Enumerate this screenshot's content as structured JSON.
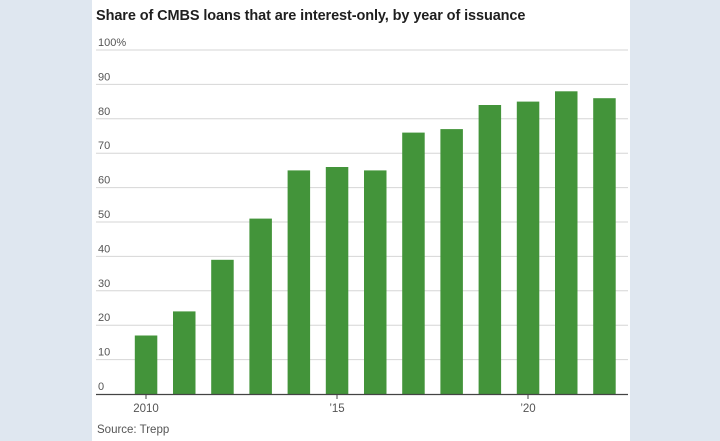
{
  "header": {
    "title": "Share of CMBS loans that are interest-only, by year of issuance"
  },
  "footer": {
    "source": "Source: Trepp"
  },
  "colors": {
    "bar": "#43943a",
    "grid": "#d6d6d6",
    "axis": "#444444",
    "text": "#555555"
  },
  "chart_data": {
    "type": "bar",
    "title": "Share of CMBS loans that are interest-only, by year of issuance",
    "xlabel": "",
    "ylabel": "",
    "categories": [
      "2010",
      "2011",
      "2012",
      "2013",
      "2014",
      "2015",
      "2016",
      "2017",
      "2018",
      "2019",
      "2020",
      "2021",
      "2022"
    ],
    "values": [
      17,
      24,
      39,
      51,
      65,
      66,
      65,
      76,
      77,
      84,
      85,
      88,
      86
    ],
    "ylim": [
      0,
      100
    ],
    "yticks": [
      0,
      10,
      20,
      30,
      40,
      50,
      60,
      70,
      80,
      90,
      100
    ],
    "ytick_labels": [
      "0",
      "10",
      "20",
      "30",
      "40",
      "50",
      "60",
      "70",
      "80",
      "90",
      "100%"
    ],
    "xtick_labels": [
      {
        "index": 0,
        "label": "2010"
      },
      {
        "index": 5,
        "label": "’15"
      },
      {
        "index": 10,
        "label": "’20"
      }
    ],
    "grid": true,
    "legend": "none"
  }
}
